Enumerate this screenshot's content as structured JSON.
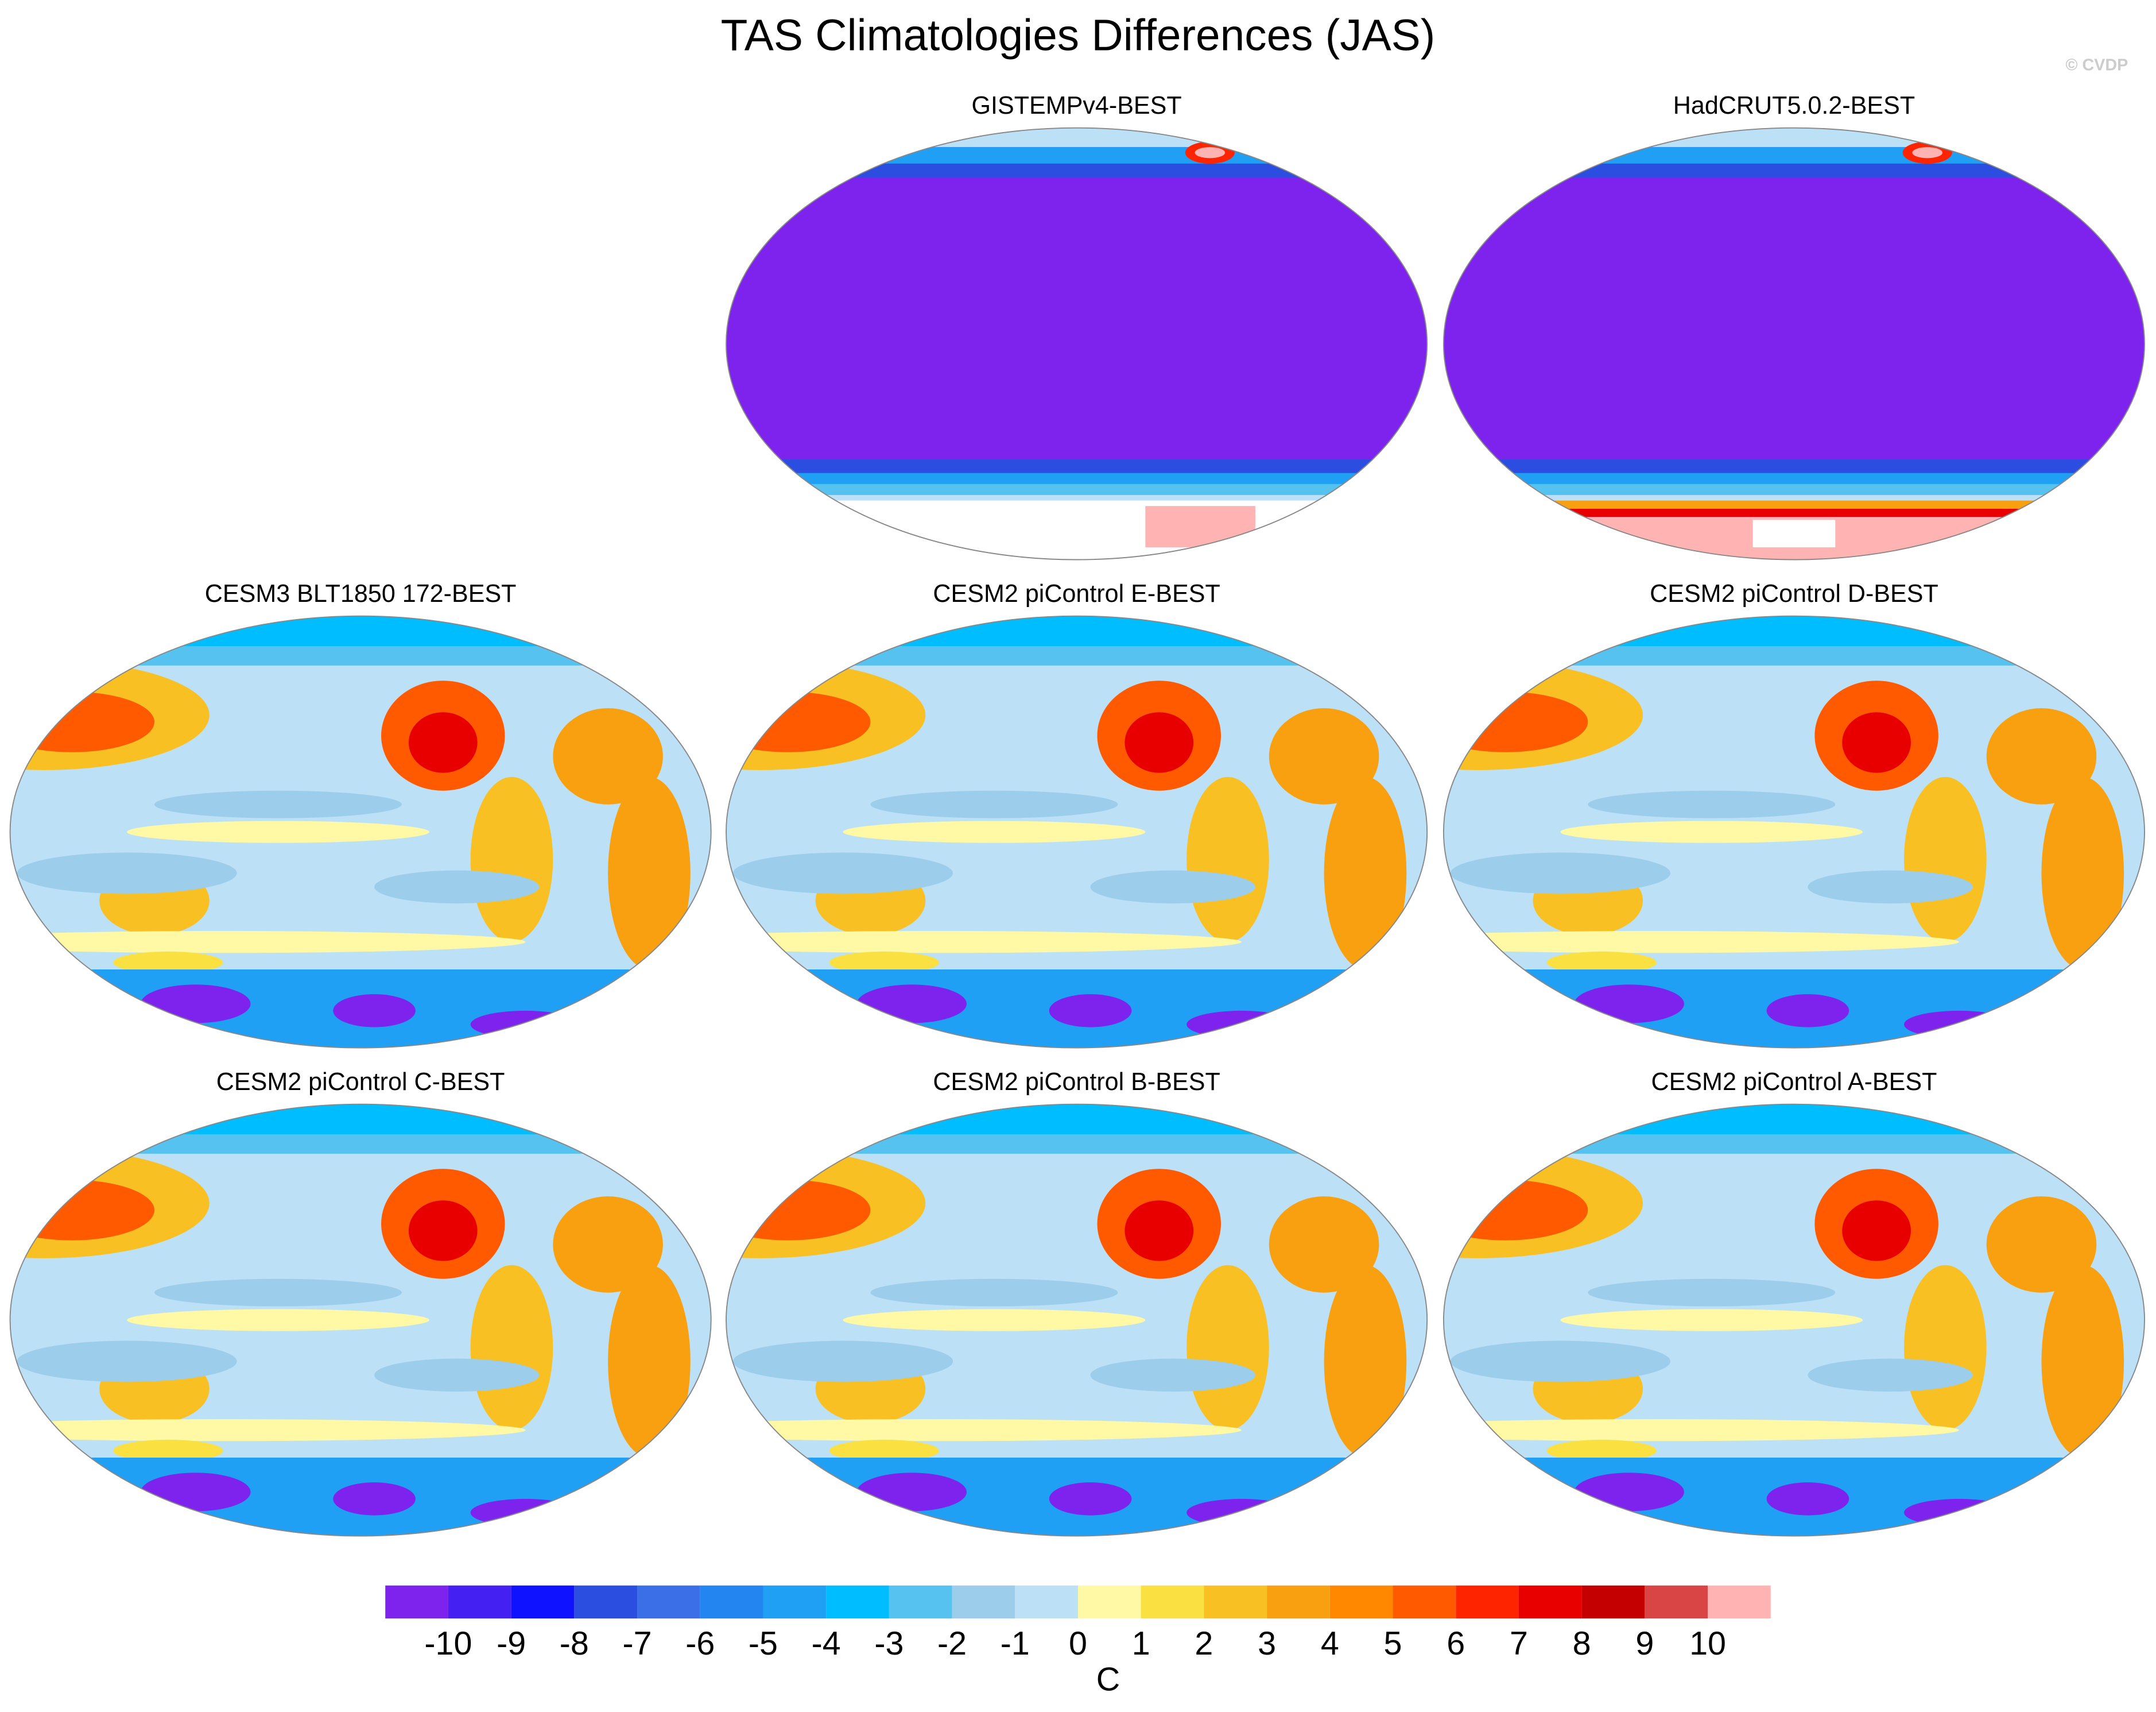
{
  "header": {
    "title": "TAS Climatologies Differences (JAS)",
    "watermark": "© CVDP"
  },
  "panels": [
    {
      "title": "GISTEMPv4-BEST"
    },
    {
      "title": "HadCRUT5.0.2-BEST"
    },
    {
      "title": "CESM3 BLT1850 172-BEST"
    },
    {
      "title": "CESM2 piControl E-BEST"
    },
    {
      "title": "CESM2 piControl D-BEST"
    },
    {
      "title": "CESM2 piControl C-BEST"
    },
    {
      "title": "CESM2 piControl B-BEST"
    },
    {
      "title": "CESM2 piControl A-BEST"
    }
  ],
  "colorbar": {
    "colors": [
      "#7e22ee",
      "#4420f2",
      "#0e12ff",
      "#2c4ee0",
      "#3a6fe8",
      "#2386f0",
      "#1fa0f5",
      "#00bdff",
      "#56c2f0",
      "#9ccdeb",
      "#bce0f6",
      "#fff8a4",
      "#fbe042",
      "#f8c022",
      "#f8a010",
      "#ff8800",
      "#ff5a00",
      "#ff2400",
      "#e80000",
      "#c40000",
      "#d94444",
      "#ffb3b3"
    ],
    "ticks": [
      -10,
      -9,
      -8,
      -7,
      -6,
      -5,
      -4,
      -3,
      -2,
      -1,
      0,
      1,
      2,
      3,
      4,
      5,
      6,
      7,
      8,
      9,
      10
    ],
    "unit": "C"
  }
}
